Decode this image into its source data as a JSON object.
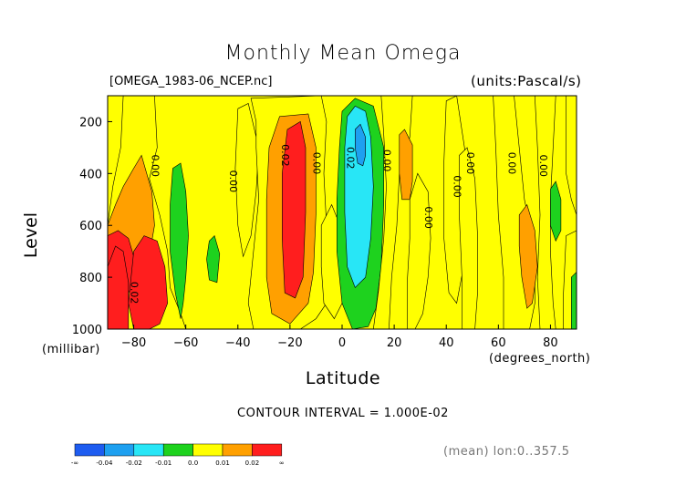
{
  "chart_data": {
    "type": "heatmap",
    "title": "Monthly Mean Omega",
    "file_label": "[OMEGA_1983-06_NCEP.nc]",
    "units_label": "(units:Pascal/s)",
    "xlabel": "Latitude",
    "x_units": "(degrees_north)",
    "ylabel": "Level",
    "y_units": "(millibar)",
    "xlim": [
      -90,
      90
    ],
    "ylim": [
      1000,
      100
    ],
    "x_ticks": [
      -80,
      -60,
      -40,
      -20,
      0,
      20,
      40,
      60,
      80
    ],
    "x_tick_labels": [
      "−80",
      "−60",
      "−40",
      "−20",
      "0",
      "20",
      "40",
      "60",
      "80"
    ],
    "y_ticks": [
      200,
      400,
      600,
      800,
      1000
    ],
    "y_tick_labels": [
      "200",
      "400",
      "600",
      "800",
      "1000"
    ],
    "contour_interval": "CONTOUR INTERVAL = 1.000E-02",
    "footer": "(mean) lon:0..357.5",
    "colorbar": {
      "colors": [
        "#1e5cf0",
        "#1ea0f0",
        "#28e6f6",
        "#1ed21e",
        "#ffff00",
        "#ffa000",
        "#ff1e1e"
      ],
      "labels": [
        "-∞",
        "-0.04",
        "-0.02",
        "-0.01",
        "0.0",
        "0.01",
        "0.02",
        "∞"
      ]
    },
    "contour_labels": [
      {
        "text": "0.00",
        "lat": -72,
        "level": 370
      },
      {
        "text": "0.00",
        "lat": -42,
        "level": 430
      },
      {
        "text": "0.02",
        "lat": -22,
        "level": 330
      },
      {
        "text": "0.00",
        "lat": -10,
        "level": 360
      },
      {
        "text": "0.02",
        "lat": 3,
        "level": 340
      },
      {
        "text": "0.00",
        "lat": 17,
        "level": 350
      },
      {
        "text": "0.00",
        "lat": 33,
        "level": 570
      },
      {
        "text": "0.00",
        "lat": 44,
        "level": 450
      },
      {
        "text": "0.00",
        "lat": 49,
        "level": 360
      },
      {
        "text": "0.00",
        "lat": 65,
        "level": 360
      },
      {
        "text": "0.00",
        "lat": 77,
        "level": 370
      },
      {
        "text": "0.02",
        "lat": -80,
        "level": 860
      }
    ],
    "fill_regions": [
      {
        "level": 0.0,
        "poly": [
          [
            -90,
            100
          ],
          [
            90,
            100
          ],
          [
            90,
            1000
          ],
          [
            -90,
            1000
          ]
        ]
      },
      {
        "level": 0.005,
        "poly": [
          [
            -90,
            600
          ],
          [
            -88,
            450
          ],
          [
            -85,
            300
          ],
          [
            -84,
            100
          ],
          [
            -72,
            100
          ],
          [
            -71,
            300
          ],
          [
            -74,
            420
          ],
          [
            -70,
            560
          ],
          [
            -67,
            700
          ],
          [
            -66,
            840
          ],
          [
            -62,
            940
          ],
          [
            -60,
            1000
          ],
          [
            -90,
            1000
          ]
        ]
      },
      {
        "level": 0.015,
        "poly": [
          [
            -90,
            600
          ],
          [
            -87,
            520
          ],
          [
            -84,
            450
          ],
          [
            -80,
            380
          ],
          [
            -77,
            330
          ],
          [
            -73,
            470
          ],
          [
            -72,
            600
          ],
          [
            -73,
            660
          ],
          [
            -75,
            700
          ],
          [
            -80,
            830
          ],
          [
            -90,
            860
          ]
        ]
      },
      {
        "level": 0.025,
        "poly": [
          [
            -90,
            640
          ],
          [
            -86,
            620
          ],
          [
            -82,
            650
          ],
          [
            -80,
            720
          ],
          [
            -79,
            800
          ],
          [
            -84,
            900
          ],
          [
            -90,
            980
          ]
        ]
      },
      {
        "level": 0.025,
        "poly": [
          [
            -80,
            700
          ],
          [
            -76,
            640
          ],
          [
            -71,
            660
          ],
          [
            -68,
            760
          ],
          [
            -67,
            900
          ],
          [
            -70,
            980
          ],
          [
            -74,
            1000
          ],
          [
            -80,
            1000
          ],
          [
            -82,
            900
          ]
        ]
      },
      {
        "level": 0.035,
        "poly": [
          [
            -90,
            760
          ],
          [
            -87,
            680
          ],
          [
            -84,
            700
          ],
          [
            -82,
            820
          ],
          [
            -82,
            1000
          ],
          [
            -90,
            1000
          ]
        ]
      },
      {
        "level": -0.005,
        "poly": [
          [
            -65,
            380
          ],
          [
            -62,
            360
          ],
          [
            -60,
            470
          ],
          [
            -59,
            640
          ],
          [
            -60,
            800
          ],
          [
            -61,
            900
          ],
          [
            -62,
            960
          ],
          [
            -64,
            860
          ],
          [
            -66,
            700
          ],
          [
            -66,
            520
          ]
        ]
      },
      {
        "level": -0.005,
        "poly": [
          [
            -51,
            660
          ],
          [
            -49,
            640
          ],
          [
            -47,
            710
          ],
          [
            -48,
            820
          ],
          [
            -51,
            810
          ],
          [
            -52,
            730
          ]
        ]
      },
      {
        "level": 0.005,
        "poly": [
          [
            -40,
            150
          ],
          [
            -36,
            130
          ],
          [
            -32,
            300
          ],
          [
            -33,
            470
          ],
          [
            -35,
            640
          ],
          [
            -38,
            720
          ],
          [
            -40,
            600
          ],
          [
            -41,
            380
          ]
        ]
      },
      {
        "level": 0.005,
        "poly": [
          [
            -35,
            110
          ],
          [
            -8,
            100
          ],
          [
            -6,
            200
          ],
          [
            -7,
            400
          ],
          [
            -6,
            600
          ],
          [
            -4,
            800
          ],
          [
            -6,
            900
          ],
          [
            -10,
            960
          ],
          [
            -16,
            1000
          ],
          [
            -34,
            1000
          ],
          [
            -36,
            900
          ],
          [
            -34,
            700
          ],
          [
            -32,
            500
          ],
          [
            -33,
            300
          ],
          [
            -33,
            200
          ]
        ]
      },
      {
        "level": 0.015,
        "poly": [
          [
            -24,
            180
          ],
          [
            -13,
            170
          ],
          [
            -10,
            300
          ],
          [
            -10,
            550
          ],
          [
            -11,
            780
          ],
          [
            -13,
            900
          ],
          [
            -20,
            980
          ],
          [
            -27,
            940
          ],
          [
            -29,
            800
          ],
          [
            -29,
            500
          ],
          [
            -28,
            300
          ]
        ]
      },
      {
        "level": 0.025,
        "poly": [
          [
            -21,
            230
          ],
          [
            -16,
            200
          ],
          [
            -14,
            300
          ],
          [
            -14,
            550
          ],
          [
            -15,
            800
          ],
          [
            -18,
            880
          ],
          [
            -22,
            860
          ],
          [
            -23,
            650
          ],
          [
            -23,
            400
          ]
        ]
      },
      {
        "level": 0.005,
        "poly": [
          [
            -8,
            600
          ],
          [
            -4,
            520
          ],
          [
            0,
            620
          ],
          [
            2,
            750
          ],
          [
            1,
            880
          ],
          [
            -3,
            960
          ],
          [
            -7,
            900
          ],
          [
            -8,
            760
          ]
        ]
      },
      {
        "level": -0.005,
        "poly": [
          [
            0,
            160
          ],
          [
            5,
            110
          ],
          [
            12,
            140
          ],
          [
            16,
            300
          ],
          [
            16,
            520
          ],
          [
            15,
            760
          ],
          [
            13,
            920
          ],
          [
            10,
            990
          ],
          [
            4,
            1000
          ],
          [
            0,
            900
          ],
          [
            -2,
            700
          ],
          [
            -2,
            500
          ],
          [
            -1,
            300
          ]
        ]
      },
      {
        "level": -0.015,
        "poly": [
          [
            2,
            180
          ],
          [
            5,
            140
          ],
          [
            9,
            160
          ],
          [
            11,
            260
          ],
          [
            12,
            450
          ],
          [
            11,
            650
          ],
          [
            9,
            800
          ],
          [
            5,
            840
          ],
          [
            2,
            760
          ],
          [
            1,
            550
          ],
          [
            1,
            300
          ]
        ]
      },
      {
        "level": -0.025,
        "poly": [
          [
            5,
            230
          ],
          [
            7,
            210
          ],
          [
            9,
            260
          ],
          [
            9,
            330
          ],
          [
            8,
            370
          ],
          [
            6,
            360
          ],
          [
            5,
            300
          ]
        ]
      },
      {
        "level": 0.005,
        "poly": [
          [
            15,
            100
          ],
          [
            27,
            100
          ],
          [
            26,
            260
          ],
          [
            22,
            400
          ],
          [
            21,
            600
          ],
          [
            19,
            800
          ],
          [
            18,
            1000
          ],
          [
            12,
            1000
          ],
          [
            14,
            850
          ],
          [
            16,
            650
          ],
          [
            17,
            450
          ],
          [
            16,
            250
          ]
        ]
      },
      {
        "level": 0.015,
        "poly": [
          [
            22,
            250
          ],
          [
            24,
            230
          ],
          [
            27,
            290
          ],
          [
            27,
            430
          ],
          [
            26,
            500
          ],
          [
            23,
            500
          ],
          [
            22,
            400
          ]
        ]
      },
      {
        "level": 0.005,
        "poly": [
          [
            26,
            500
          ],
          [
            29,
            400
          ],
          [
            33,
            470
          ],
          [
            34,
            650
          ],
          [
            33,
            800
          ],
          [
            31,
            940
          ],
          [
            28,
            1000
          ],
          [
            25,
            1000
          ],
          [
            25,
            820
          ],
          [
            26,
            650
          ]
        ]
      },
      {
        "level": 0.005,
        "poly": [
          [
            40,
            120
          ],
          [
            44,
            100
          ],
          [
            47,
            300
          ],
          [
            48,
            540
          ],
          [
            47,
            740
          ],
          [
            44,
            900
          ],
          [
            41,
            860
          ],
          [
            39,
            640
          ],
          [
            39,
            380
          ]
        ]
      },
      {
        "level": 0.005,
        "poly": [
          [
            45,
            330
          ],
          [
            48,
            300
          ],
          [
            51,
            420
          ],
          [
            52,
            640
          ],
          [
            52,
            860
          ],
          [
            51,
            1000
          ],
          [
            46,
            1000
          ],
          [
            46,
            800
          ],
          [
            45,
            560
          ]
        ]
      },
      {
        "level": 0.005,
        "poly": [
          [
            58,
            100
          ],
          [
            66,
            100
          ],
          [
            68,
            300
          ],
          [
            70,
            500
          ],
          [
            74,
            700
          ],
          [
            74,
            900
          ],
          [
            72,
            1000
          ],
          [
            62,
            1000
          ],
          [
            62,
            800
          ],
          [
            60,
            560
          ],
          [
            59,
            300
          ]
        ]
      },
      {
        "level": 0.015,
        "poly": [
          [
            68,
            560
          ],
          [
            71,
            520
          ],
          [
            74,
            620
          ],
          [
            75,
            760
          ],
          [
            73,
            900
          ],
          [
            71,
            920
          ],
          [
            69,
            800
          ],
          [
            68,
            680
          ]
        ]
      },
      {
        "level": 0.005,
        "poly": [
          [
            74,
            100
          ],
          [
            82,
            100
          ],
          [
            81,
            300
          ],
          [
            80,
            500
          ],
          [
            80,
            700
          ],
          [
            81,
            900
          ],
          [
            82,
            1000
          ],
          [
            76,
            1000
          ],
          [
            75,
            800
          ],
          [
            76,
            560
          ],
          [
            75,
            300
          ]
        ]
      },
      {
        "level": -0.005,
        "poly": [
          [
            80,
            460
          ],
          [
            82,
            430
          ],
          [
            84,
            500
          ],
          [
            84,
            620
          ],
          [
            82,
            660
          ],
          [
            80,
            600
          ]
        ]
      },
      {
        "level": 0.005,
        "poly": [
          [
            86,
            100
          ],
          [
            90,
            100
          ],
          [
            90,
            560
          ],
          [
            88,
            500
          ],
          [
            86,
            400
          ]
        ]
      },
      {
        "level": 0.005,
        "poly": [
          [
            86,
            640
          ],
          [
            90,
            620
          ],
          [
            90,
            1000
          ],
          [
            85,
            1000
          ],
          [
            85,
            860
          ]
        ]
      },
      {
        "level": -0.005,
        "poly": [
          [
            88,
            800
          ],
          [
            90,
            780
          ],
          [
            90,
            1000
          ],
          [
            88,
            1000
          ]
        ]
      }
    ]
  }
}
